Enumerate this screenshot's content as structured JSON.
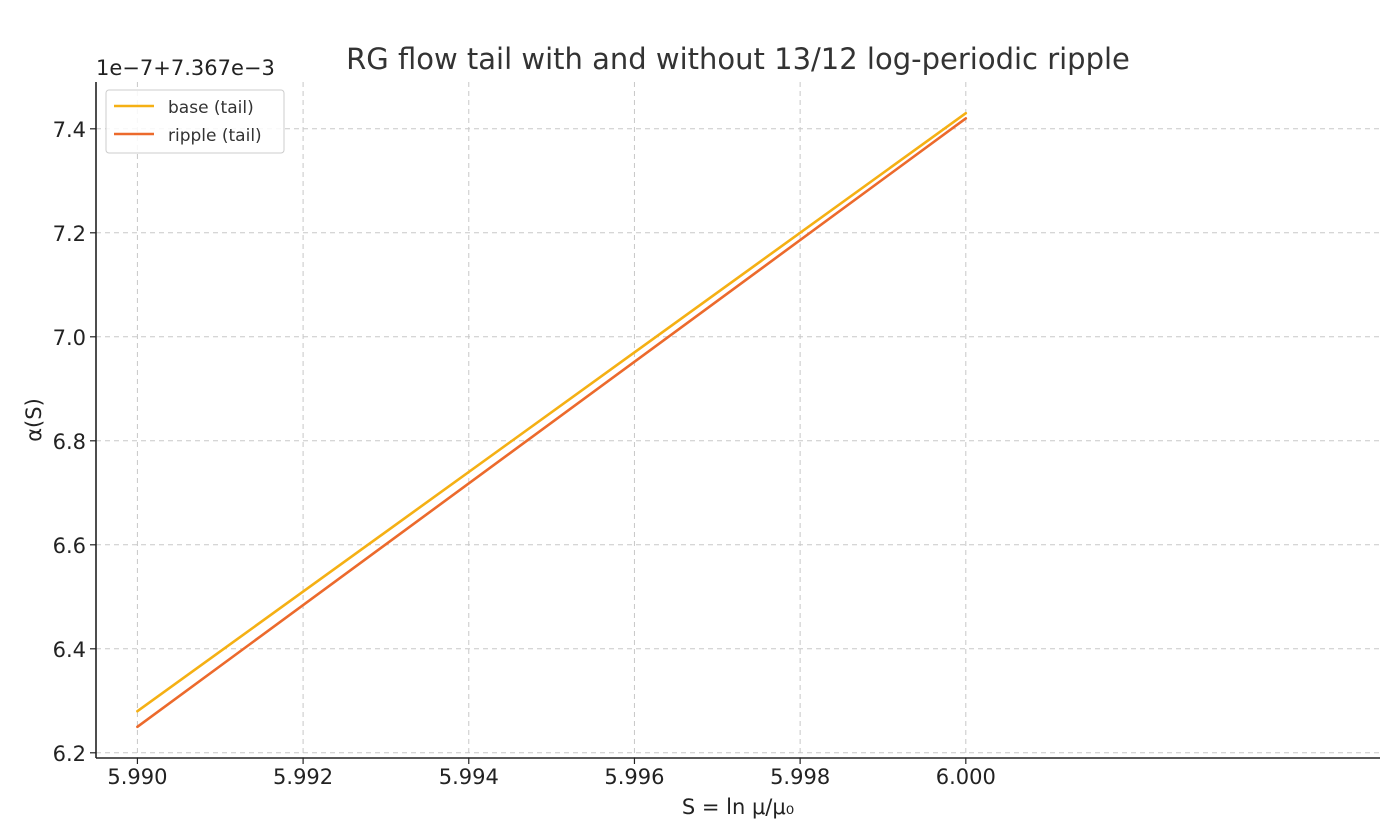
{
  "chart_data": {
    "type": "line",
    "title": "RG flow tail with and without 13/12 log-periodic ripple",
    "xlabel": "S = ln μ/μ₀",
    "ylabel": "α(S)",
    "y_offset_label": "1e−7+7.367e−3",
    "x_ticks": [
      5.99,
      5.992,
      5.994,
      5.996,
      5.998,
      6.0
    ],
    "x_tick_labels": [
      "5.990",
      "5.992",
      "5.994",
      "5.996",
      "5.998",
      "6.000"
    ],
    "y_ticks": [
      6.2,
      6.4,
      6.6,
      6.8,
      7.0,
      7.2,
      7.4
    ],
    "y_tick_labels": [
      "6.2",
      "6.4",
      "6.6",
      "6.8",
      "7.0",
      "7.2",
      "7.4"
    ],
    "xlim": [
      5.9895,
      6.005
    ],
    "ylim": [
      6.19,
      7.49
    ],
    "grid": true,
    "legend_position": "top-left",
    "series": [
      {
        "name": "base (tail)",
        "color": "#f5b014",
        "x": [
          5.99,
          6.0
        ],
        "y": [
          6.28,
          7.43
        ]
      },
      {
        "name": "ripple (tail)",
        "color": "#ec6a2c",
        "x": [
          5.99,
          6.0
        ],
        "y": [
          6.25,
          7.42
        ]
      }
    ]
  }
}
